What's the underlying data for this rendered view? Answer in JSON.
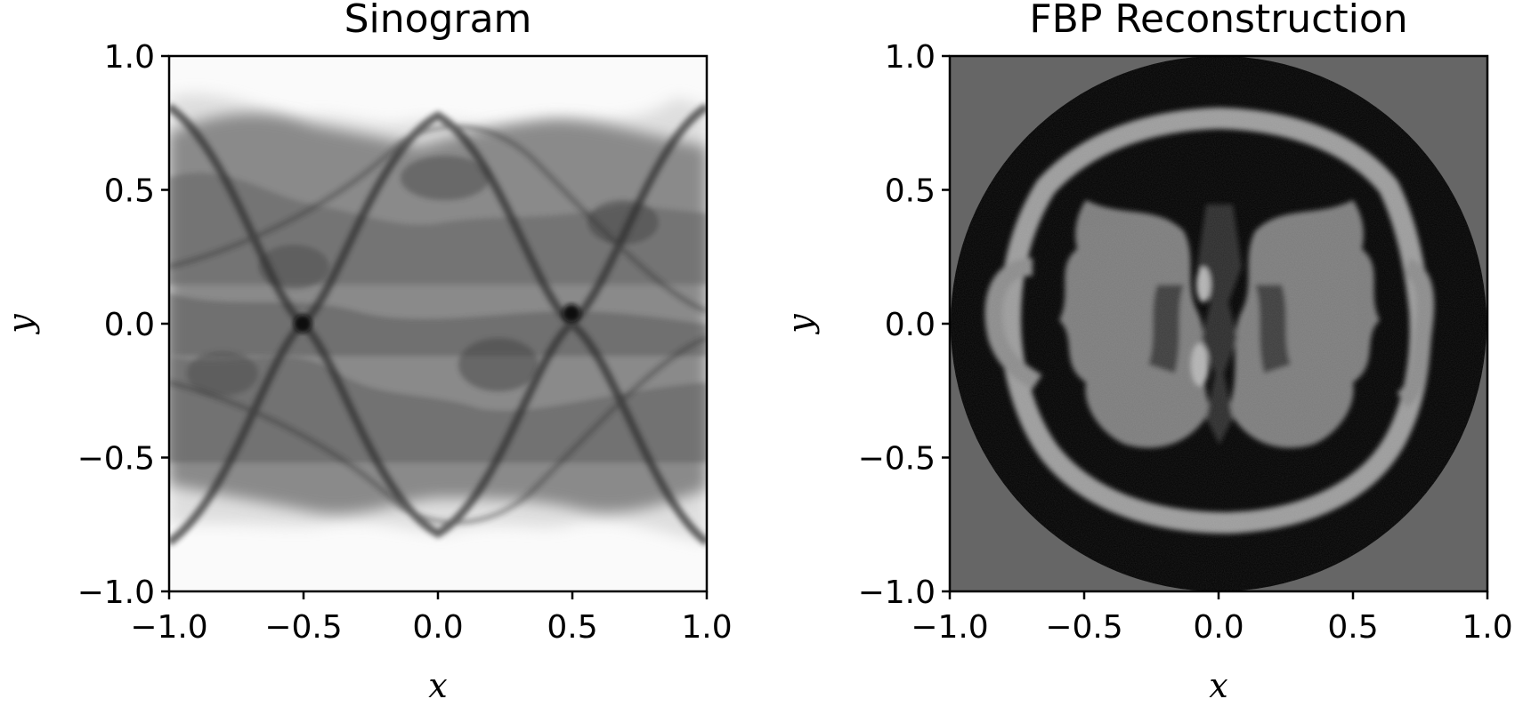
{
  "chart_data": [
    {
      "type": "heatmap",
      "title": "Sinogram",
      "xlabel": "x",
      "ylabel": "y",
      "xlim": [
        -1.0,
        1.0
      ],
      "ylim": [
        -1.0,
        1.0
      ],
      "xticks": [
        -1.0,
        -0.5,
        0.0,
        0.5,
        1.0
      ],
      "yticks": [
        -1.0,
        -0.5,
        0.0,
        0.5,
        1.0
      ],
      "xtick_labels": [
        "−1.0",
        "−0.5",
        "0.0",
        "0.5",
        "1.0"
      ],
      "ytick_labels": [
        "−1.0",
        "−0.5",
        "0.0",
        "0.5",
        "1.0"
      ],
      "colormap": "gray_r",
      "grid": false
    },
    {
      "type": "heatmap",
      "title": "FBP Reconstruction",
      "xlabel": "x",
      "ylabel": "y",
      "xlim": [
        -1.0,
        1.0
      ],
      "ylim": [
        -1.0,
        1.0
      ],
      "xticks": [
        -1.0,
        -0.5,
        0.0,
        0.5,
        1.0
      ],
      "yticks": [
        -1.0,
        -0.5,
        0.0,
        0.5,
        1.0
      ],
      "xtick_labels": [
        "−1.0",
        "−0.5",
        "0.0",
        "0.5",
        "1.0"
      ],
      "ytick_labels": [
        "−1.0",
        "−0.5",
        "0.0",
        "0.5",
        "1.0"
      ],
      "colormap": "gray",
      "background_color": "#666666",
      "grid": false
    }
  ]
}
